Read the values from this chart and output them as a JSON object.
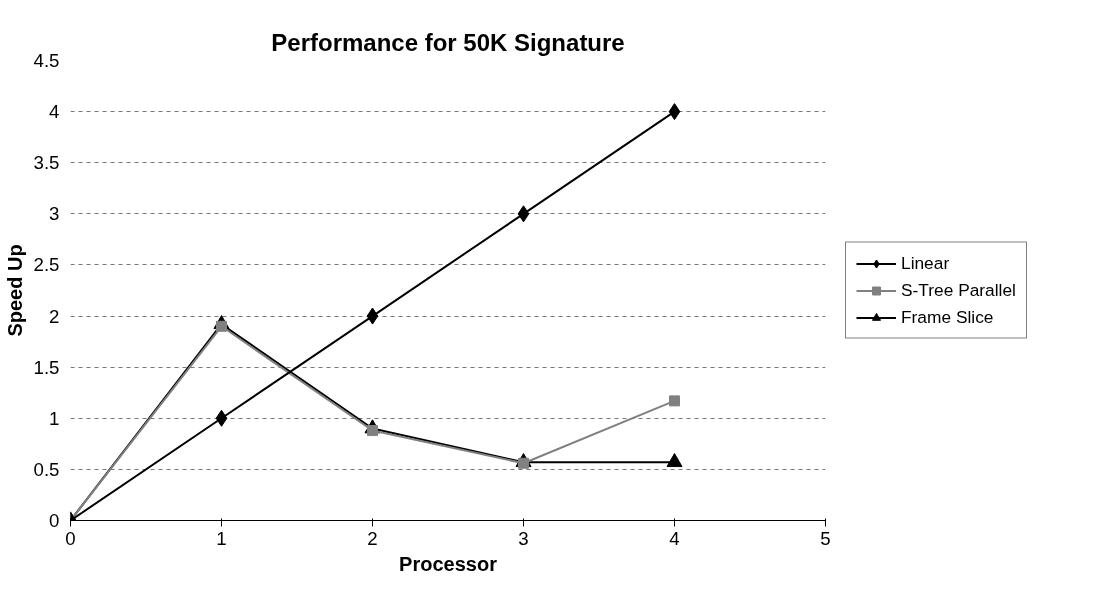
{
  "chart_data": {
    "type": "line",
    "title": "Performance for 50K Signature",
    "xlabel": "Processor",
    "ylabel": "Speed Up",
    "x": [
      0,
      1,
      2,
      3,
      4
    ],
    "series": [
      {
        "name": "Linear",
        "color": "#000000",
        "marker": "diamond",
        "values": [
          0,
          1,
          2,
          3,
          4
        ]
      },
      {
        "name": "S-Tree Parallel",
        "color": "#808080",
        "marker": "square",
        "values": [
          0,
          1.9,
          0.88,
          0.56,
          1.17
        ]
      },
      {
        "name": "Frame Slice",
        "color": "#000000",
        "marker": "triangle",
        "values": [
          0,
          1.92,
          0.9,
          0.57,
          0.57
        ]
      }
    ],
    "xlim": [
      0,
      5
    ],
    "xticks": [
      0,
      1,
      2,
      3,
      4,
      5
    ],
    "ylim": [
      0,
      4.5
    ],
    "yticks": [
      0,
      0.5,
      1,
      1.5,
      2,
      2.5,
      3,
      3.5,
      4,
      4.5
    ],
    "grid": "y",
    "legend": "right",
    "line_style": "solid"
  }
}
